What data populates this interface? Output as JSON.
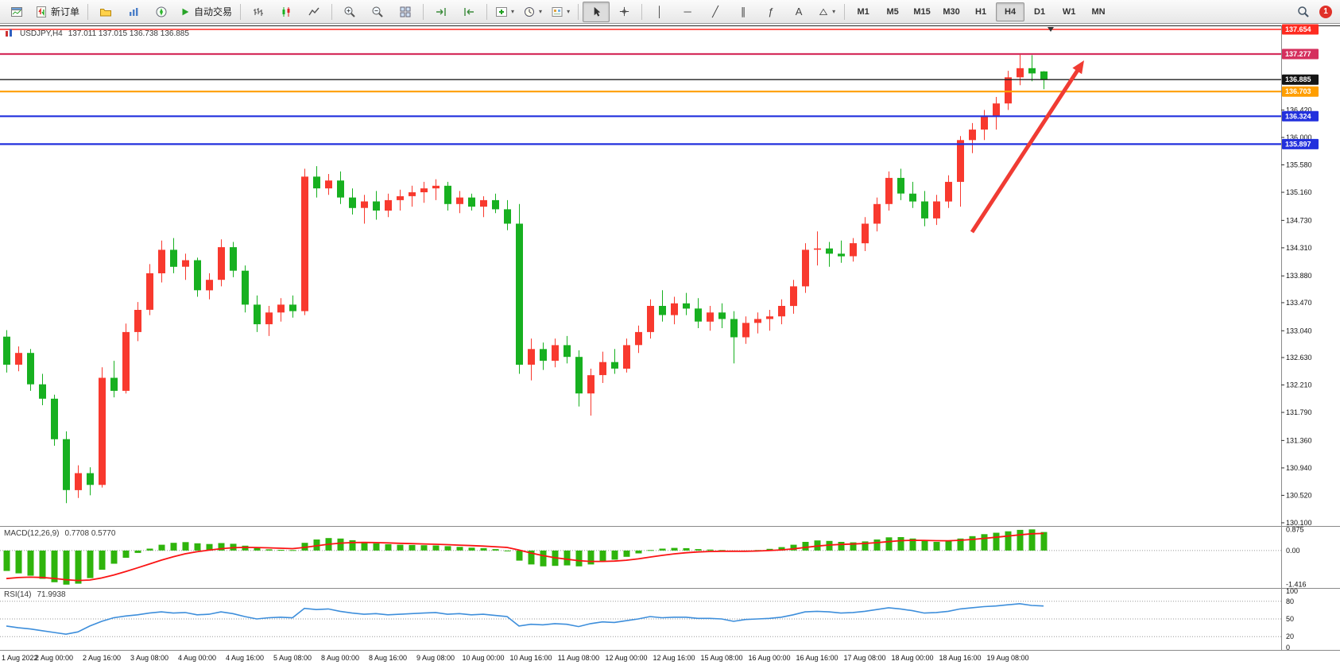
{
  "icons": {
    "caret_down": "▾"
  },
  "toolbar": {
    "new_order_label": "新订单",
    "auto_trading_label": "自动交易",
    "timeframes": [
      "M1",
      "M5",
      "M15",
      "M30",
      "H1",
      "H4",
      "D1",
      "W1",
      "MN"
    ],
    "active_timeframe": "H4",
    "notification_count": "1",
    "tool_glyphs": {
      "vertical_line": "│",
      "horizontal_line": "─",
      "trendline": "╱",
      "channel": "∥",
      "fibonacci": "ƒ",
      "text": "A"
    }
  },
  "chart_header": {
    "symbol_period": "USDJPY,H4",
    "ohlc": "137.011 137.015 136.738 136.885"
  },
  "indicators": {
    "macd_label": "MACD(12,26,9)",
    "macd_values": "0.7708 0.5770",
    "rsi_label": "RSI(14)",
    "rsi_value": "71.9938"
  },
  "price_axis": {
    "ticks": [
      "136.420",
      "136.000",
      "135.580",
      "135.160",
      "134.730",
      "134.310",
      "133.880",
      "133.470",
      "133.040",
      "132.630",
      "132.210",
      "131.790",
      "131.360",
      "130.940",
      "130.520",
      "130.100"
    ],
    "badges": [
      {
        "label": "137.654",
        "price": 137.654,
        "color": "#fe2b20"
      },
      {
        "label": "137.277",
        "price": 137.277,
        "color": "#d5305e"
      },
      {
        "label": "136.885",
        "price": 136.885,
        "color": "#151515"
      },
      {
        "label": "136.703",
        "price": 136.703,
        "color": "#ff9e00"
      },
      {
        "label": "136.324",
        "price": 136.324,
        "color": "#2230dd"
      },
      {
        "label": "135.897",
        "price": 135.897,
        "color": "#2230dd"
      }
    ]
  },
  "macd_axis": [
    "0.875",
    "0.00",
    "-1.416"
  ],
  "rsi_axis": [
    "100",
    "80",
    "50",
    "20",
    "0"
  ],
  "time_axis": [
    "1 Aug 2022",
    "2 Aug 00:00",
    "2 Aug 16:00",
    "3 Aug 08:00",
    "4 Aug 00:00",
    "4 Aug 16:00",
    "5 Aug 08:00",
    "8 Aug 00:00",
    "8 Aug 16:00",
    "9 Aug 08:00",
    "10 Aug 00:00",
    "10 Aug 16:00",
    "11 Aug 08:00",
    "12 Aug 00:00",
    "12 Aug 16:00",
    "15 Aug 08:00",
    "16 Aug 00:00",
    "16 Aug 16:00",
    "17 Aug 08:00",
    "18 Aug 00:00",
    "18 Aug 16:00",
    "19 Aug 08:00"
  ],
  "chart_data": {
    "type": "candlestick",
    "symbol": "USDJPY",
    "period": "H4",
    "y_range": [
      130.1,
      137.715
    ],
    "colors": {
      "bull": "#f8392e",
      "bear": "#17b020",
      "macd_hist": "#2fb40c",
      "macd_signal": "#fa1414",
      "rsi_line": "#3d8edb",
      "arrow": "#f03b33"
    },
    "candles": [
      [
        132.95,
        133.05,
        132.4,
        132.52
      ],
      [
        132.52,
        132.8,
        132.42,
        132.7
      ],
      [
        132.7,
        132.76,
        132.12,
        132.22
      ],
      [
        132.22,
        132.38,
        131.9,
        132.0
      ],
      [
        132.0,
        132.06,
        131.28,
        131.38
      ],
      [
        131.38,
        131.5,
        130.4,
        130.6
      ],
      [
        130.6,
        130.98,
        130.48,
        130.86
      ],
      [
        130.86,
        130.95,
        130.52,
        130.68
      ],
      [
        130.68,
        132.48,
        130.64,
        132.32
      ],
      [
        132.32,
        132.58,
        132.02,
        132.12
      ],
      [
        132.12,
        133.15,
        132.08,
        133.02
      ],
      [
        133.02,
        133.48,
        132.88,
        133.36
      ],
      [
        133.36,
        134.06,
        133.28,
        133.92
      ],
      [
        133.92,
        134.42,
        133.78,
        134.28
      ],
      [
        134.28,
        134.46,
        133.92,
        134.02
      ],
      [
        134.02,
        134.22,
        133.82,
        134.12
      ],
      [
        134.12,
        134.16,
        133.56,
        133.66
      ],
      [
        133.66,
        133.92,
        133.52,
        133.82
      ],
      [
        133.82,
        134.44,
        133.72,
        134.32
      ],
      [
        134.32,
        134.4,
        133.86,
        133.96
      ],
      [
        133.96,
        134.04,
        133.32,
        133.44
      ],
      [
        133.44,
        133.58,
        133.02,
        133.14
      ],
      [
        133.14,
        133.42,
        132.96,
        133.32
      ],
      [
        133.32,
        133.54,
        133.18,
        133.44
      ],
      [
        133.44,
        133.58,
        133.24,
        133.34
      ],
      [
        133.34,
        135.52,
        133.28,
        135.4
      ],
      [
        135.4,
        135.56,
        135.08,
        135.22
      ],
      [
        135.22,
        135.44,
        135.12,
        135.34
      ],
      [
        135.34,
        135.48,
        134.98,
        135.08
      ],
      [
        135.08,
        135.22,
        134.82,
        134.92
      ],
      [
        134.92,
        135.12,
        134.68,
        135.02
      ],
      [
        135.02,
        135.18,
        134.74,
        134.88
      ],
      [
        134.88,
        135.14,
        134.78,
        135.04
      ],
      [
        135.04,
        135.2,
        134.88,
        135.1
      ],
      [
        135.1,
        135.26,
        134.94,
        135.16
      ],
      [
        135.16,
        135.32,
        135.0,
        135.22
      ],
      [
        135.22,
        135.36,
        135.04,
        135.26
      ],
      [
        135.26,
        135.32,
        134.88,
        134.98
      ],
      [
        134.98,
        135.18,
        134.84,
        135.08
      ],
      [
        135.08,
        135.14,
        134.88,
        134.94
      ],
      [
        134.94,
        135.1,
        134.78,
        135.04
      ],
      [
        135.04,
        135.14,
        134.84,
        134.9
      ],
      [
        134.9,
        135.04,
        134.58,
        134.68
      ],
      [
        134.68,
        134.98,
        132.38,
        132.52
      ],
      [
        132.52,
        132.92,
        132.28,
        132.76
      ],
      [
        132.76,
        132.86,
        132.44,
        132.58
      ],
      [
        132.58,
        132.92,
        132.48,
        132.82
      ],
      [
        132.82,
        132.96,
        132.54,
        132.64
      ],
      [
        132.64,
        132.74,
        131.88,
        132.08
      ],
      [
        132.08,
        132.46,
        131.74,
        132.36
      ],
      [
        132.36,
        132.72,
        132.24,
        132.56
      ],
      [
        132.56,
        132.76,
        132.38,
        132.46
      ],
      [
        132.46,
        132.92,
        132.4,
        132.82
      ],
      [
        132.82,
        133.12,
        132.7,
        133.02
      ],
      [
        133.02,
        133.52,
        132.92,
        133.42
      ],
      [
        133.42,
        133.66,
        133.18,
        133.28
      ],
      [
        133.28,
        133.56,
        133.14,
        133.46
      ],
      [
        133.46,
        133.62,
        133.28,
        133.38
      ],
      [
        133.38,
        133.54,
        133.08,
        133.18
      ],
      [
        133.18,
        133.42,
        133.04,
        133.32
      ],
      [
        133.32,
        133.46,
        133.08,
        133.22
      ],
      [
        133.22,
        133.34,
        132.54,
        132.94
      ],
      [
        132.94,
        133.26,
        132.84,
        133.16
      ],
      [
        133.16,
        133.32,
        133.0,
        133.22
      ],
      [
        133.22,
        133.36,
        133.04,
        133.26
      ],
      [
        133.26,
        133.52,
        133.14,
        133.42
      ],
      [
        133.42,
        133.82,
        133.3,
        133.72
      ],
      [
        133.72,
        134.38,
        133.62,
        134.28
      ],
      [
        134.28,
        134.56,
        134.04,
        134.3
      ],
      [
        134.3,
        134.4,
        134.02,
        134.22
      ],
      [
        134.22,
        134.42,
        134.08,
        134.18
      ],
      [
        134.18,
        134.46,
        134.1,
        134.38
      ],
      [
        134.38,
        134.78,
        134.26,
        134.68
      ],
      [
        134.68,
        135.08,
        134.56,
        134.98
      ],
      [
        134.98,
        135.48,
        134.88,
        135.38
      ],
      [
        135.38,
        135.52,
        135.04,
        135.14
      ],
      [
        135.14,
        135.32,
        134.92,
        135.02
      ],
      [
        135.02,
        135.18,
        134.64,
        134.76
      ],
      [
        134.76,
        135.12,
        134.66,
        135.02
      ],
      [
        135.02,
        135.42,
        134.92,
        135.32
      ],
      [
        135.32,
        136.02,
        134.94,
        135.96
      ],
      [
        135.96,
        136.22,
        135.76,
        136.12
      ],
      [
        136.12,
        136.42,
        135.96,
        136.32
      ],
      [
        136.32,
        136.62,
        136.12,
        136.52
      ],
      [
        136.52,
        137.02,
        136.42,
        136.92
      ],
      [
        136.92,
        137.28,
        136.8,
        137.06
      ],
      [
        137.06,
        137.26,
        136.86,
        136.98
      ],
      [
        137.011,
        137.015,
        136.738,
        136.885
      ]
    ],
    "hlines": [
      {
        "price": 137.654,
        "color": "#ff2a20",
        "width": 1.6,
        "name": "resistance-line-upper"
      },
      {
        "price": 137.277,
        "color": "#d5305e",
        "width": 2.2,
        "name": "resistance-line"
      },
      {
        "price": 136.885,
        "color": "#202020",
        "width": 1.4,
        "name": "current-price-line"
      },
      {
        "price": 136.703,
        "color": "#ff9e00",
        "width": 2.2,
        "name": "orange-level-line"
      },
      {
        "price": 136.324,
        "color": "#2230dd",
        "width": 2.2,
        "name": "support-line-1"
      },
      {
        "price": 135.897,
        "color": "#2230dd",
        "width": 2.2,
        "name": "support-line-2"
      }
    ],
    "macd": [
      -0.85,
      -0.95,
      -1.05,
      -1.18,
      -1.32,
      -1.42,
      -1.38,
      -1.15,
      -0.8,
      -0.55,
      -0.3,
      -0.1,
      0.08,
      0.24,
      0.32,
      0.35,
      0.3,
      0.27,
      0.31,
      0.28,
      0.2,
      0.1,
      0.05,
      0.03,
      0.02,
      0.32,
      0.46,
      0.52,
      0.5,
      0.43,
      0.36,
      0.3,
      0.26,
      0.24,
      0.23,
      0.22,
      0.21,
      0.18,
      0.15,
      0.12,
      0.1,
      0.06,
      0.0,
      -0.42,
      -0.58,
      -0.66,
      -0.64,
      -0.62,
      -0.66,
      -0.58,
      -0.46,
      -0.38,
      -0.26,
      -0.12,
      0.02,
      0.08,
      0.11,
      0.1,
      0.06,
      0.04,
      0.02,
      -0.04,
      -0.02,
      0.02,
      0.07,
      0.14,
      0.24,
      0.36,
      0.42,
      0.4,
      0.36,
      0.34,
      0.38,
      0.46,
      0.55,
      0.56,
      0.5,
      0.4,
      0.36,
      0.4,
      0.5,
      0.6,
      0.68,
      0.74,
      0.8,
      0.86,
      0.88,
      0.77
    ],
    "rsi": [
      38,
      35,
      33,
      30,
      27,
      24,
      28,
      38,
      46,
      52,
      55,
      57,
      60,
      62,
      60,
      61,
      57,
      58,
      62,
      59,
      54,
      50,
      52,
      53,
      52,
      68,
      66,
      67,
      63,
      60,
      58,
      59,
      57,
      58,
      59,
      60,
      61,
      58,
      59,
      57,
      58,
      56,
      54,
      38,
      41,
      40,
      42,
      41,
      37,
      42,
      45,
      44,
      47,
      50,
      54,
      52,
      53,
      53,
      51,
      51,
      50,
      46,
      49,
      50,
      51,
      53,
      57,
      62,
      63,
      62,
      60,
      61,
      63,
      66,
      69,
      67,
      64,
      60,
      61,
      63,
      67,
      69,
      71,
      72,
      74,
      76,
      73,
      72
    ],
    "rsi_levels": [
      80,
      50,
      20
    ],
    "arrow": {
      "from_index": 81,
      "from_price": 134.55,
      "to_index": 90.4,
      "to_price": 137.18
    },
    "end_marker_index": 87.6
  }
}
